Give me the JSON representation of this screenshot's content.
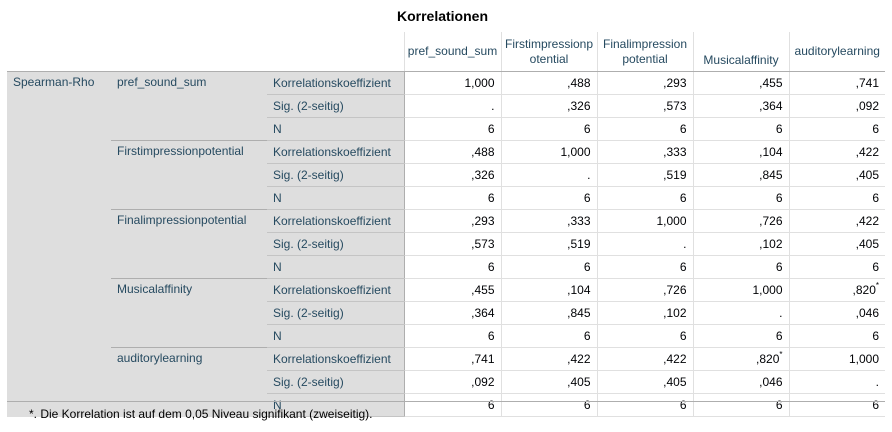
{
  "title": "Korrelationen",
  "method_label": "Spearman-Rho",
  "columns": [
    "pref_sound_sum",
    "Firstimpressionpotential",
    "Finalimpressionpotential",
    "Musicalaffinity",
    "auditorylearning"
  ],
  "stat_labels": [
    "Korrelationskoeffizient",
    "Sig. (2-seitig)",
    "N"
  ],
  "groups": [
    {
      "variable": "pref_sound_sum",
      "rows": [
        [
          {
            "v": "1,000"
          },
          {
            "v": ",488"
          },
          {
            "v": ",293"
          },
          {
            "v": ",455"
          },
          {
            "v": ",741"
          }
        ],
        [
          {
            "v": "."
          },
          {
            "v": ",326"
          },
          {
            "v": ",573"
          },
          {
            "v": ",364"
          },
          {
            "v": ",092"
          }
        ],
        [
          {
            "v": "6"
          },
          {
            "v": "6"
          },
          {
            "v": "6"
          },
          {
            "v": "6"
          },
          {
            "v": "6"
          }
        ]
      ]
    },
    {
      "variable": "Firstimpressionpotential",
      "rows": [
        [
          {
            "v": ",488"
          },
          {
            "v": "1,000"
          },
          {
            "v": ",333"
          },
          {
            "v": ",104"
          },
          {
            "v": ",422"
          }
        ],
        [
          {
            "v": ",326"
          },
          {
            "v": "."
          },
          {
            "v": ",519"
          },
          {
            "v": ",845"
          },
          {
            "v": ",405"
          }
        ],
        [
          {
            "v": "6"
          },
          {
            "v": "6"
          },
          {
            "v": "6"
          },
          {
            "v": "6"
          },
          {
            "v": "6"
          }
        ]
      ]
    },
    {
      "variable": "Finalimpressionpotential",
      "rows": [
        [
          {
            "v": ",293"
          },
          {
            "v": ",333"
          },
          {
            "v": "1,000"
          },
          {
            "v": ",726"
          },
          {
            "v": ",422"
          }
        ],
        [
          {
            "v": ",573"
          },
          {
            "v": ",519"
          },
          {
            "v": "."
          },
          {
            "v": ",102"
          },
          {
            "v": ",405"
          }
        ],
        [
          {
            "v": "6"
          },
          {
            "v": "6"
          },
          {
            "v": "6"
          },
          {
            "v": "6"
          },
          {
            "v": "6"
          }
        ]
      ]
    },
    {
      "variable": "Musicalaffinity",
      "rows": [
        [
          {
            "v": ",455"
          },
          {
            "v": ",104"
          },
          {
            "v": ",726"
          },
          {
            "v": "1,000"
          },
          {
            "v": ",820",
            "sup": "*"
          }
        ],
        [
          {
            "v": ",364"
          },
          {
            "v": ",845"
          },
          {
            "v": ",102"
          },
          {
            "v": "."
          },
          {
            "v": ",046"
          }
        ],
        [
          {
            "v": "6"
          },
          {
            "v": "6"
          },
          {
            "v": "6"
          },
          {
            "v": "6"
          },
          {
            "v": "6"
          }
        ]
      ]
    },
    {
      "variable": "auditorylearning",
      "rows": [
        [
          {
            "v": ",741"
          },
          {
            "v": ",422"
          },
          {
            "v": ",422"
          },
          {
            "v": ",820",
            "sup": "*"
          },
          {
            "v": "1,000"
          }
        ],
        [
          {
            "v": ",092"
          },
          {
            "v": ",405"
          },
          {
            "v": ",405"
          },
          {
            "v": ",046"
          },
          {
            "v": "."
          }
        ],
        [
          {
            "v": "6"
          },
          {
            "v": "6"
          },
          {
            "v": "6"
          },
          {
            "v": "6"
          },
          {
            "v": "6"
          }
        ]
      ]
    }
  ],
  "footnote": "*. Die Korrelation ist auf dem 0,05 Niveau signifikant (zweiseitig)."
}
